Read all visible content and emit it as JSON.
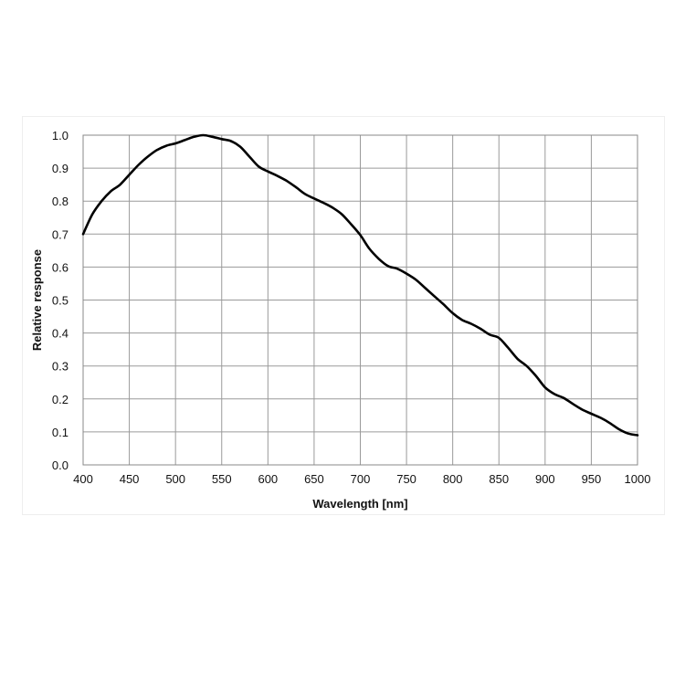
{
  "chart_data": {
    "type": "line",
    "title": "",
    "xlabel": "Wavelength [nm]",
    "ylabel": "Relative response",
    "xlim": [
      400,
      1000
    ],
    "ylim": [
      0.0,
      1.0
    ],
    "x_ticks": [
      "400",
      "450",
      "500",
      "550",
      "600",
      "650",
      "700",
      "750",
      "800",
      "850",
      "900",
      "950",
      "1000"
    ],
    "y_ticks": [
      "0.0",
      "0.1",
      "0.2",
      "0.3",
      "0.4",
      "0.5",
      "0.6",
      "0.7",
      "0.8",
      "0.9",
      "1.0"
    ],
    "grid": true,
    "legend": "none",
    "series": [
      {
        "color": "#000000",
        "x": [
          400,
          410,
          420,
          430,
          440,
          450,
          460,
          470,
          480,
          490,
          500,
          510,
          520,
          530,
          540,
          550,
          560,
          570,
          580,
          590,
          600,
          610,
          620,
          630,
          640,
          650,
          660,
          670,
          680,
          690,
          700,
          710,
          720,
          730,
          740,
          750,
          760,
          770,
          780,
          790,
          800,
          810,
          820,
          830,
          840,
          850,
          860,
          870,
          880,
          890,
          900,
          910,
          920,
          930,
          940,
          950,
          960,
          970,
          980,
          990,
          1000
        ],
        "y": [
          0.7,
          0.76,
          0.8,
          0.83,
          0.85,
          0.88,
          0.91,
          0.935,
          0.955,
          0.968,
          0.975,
          0.985,
          0.995,
          1.0,
          0.995,
          0.988,
          0.982,
          0.965,
          0.935,
          0.905,
          0.89,
          0.877,
          0.862,
          0.843,
          0.822,
          0.808,
          0.795,
          0.78,
          0.76,
          0.73,
          0.697,
          0.655,
          0.625,
          0.603,
          0.595,
          0.58,
          0.562,
          0.537,
          0.512,
          0.487,
          0.46,
          0.44,
          0.428,
          0.413,
          0.395,
          0.385,
          0.355,
          0.322,
          0.3,
          0.27,
          0.235,
          0.215,
          0.203,
          0.185,
          0.168,
          0.155,
          0.143,
          0.127,
          0.108,
          0.095,
          0.09
        ]
      }
    ]
  }
}
